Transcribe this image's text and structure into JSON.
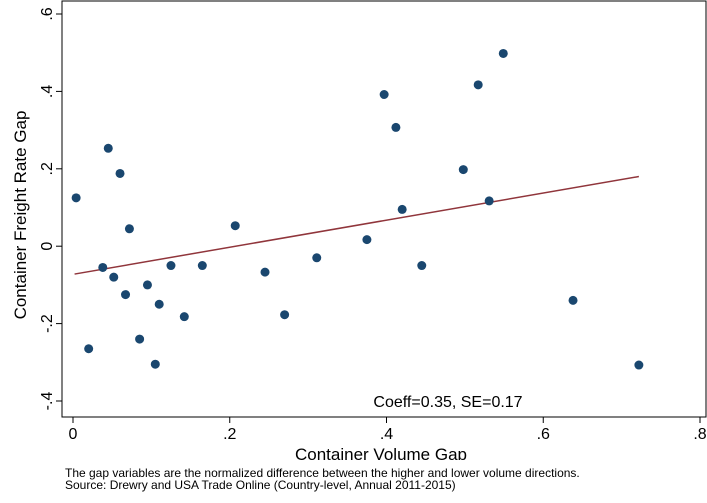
{
  "chart_data": {
    "type": "scatter",
    "xlabel": "Container Volume Gap",
    "ylabel": "Container Freight Rate Gap",
    "xlim": [
      0,
      0.8
    ],
    "ylim": [
      -0.4,
      0.6
    ],
    "x_ticks": [
      0,
      0.2,
      0.4,
      0.6,
      0.8
    ],
    "x_tick_labels": [
      "0",
      ".2",
      ".4",
      ".6",
      ".8"
    ],
    "y_ticks": [
      -0.4,
      -0.2,
      0,
      0.2,
      0.4,
      0.6
    ],
    "y_tick_labels": [
      "-.4",
      "-.2",
      "0",
      ".2",
      ".4",
      ".6"
    ],
    "grid": false,
    "point_color": "#1a476f",
    "line_color": "#90353b",
    "points": [
      [
        0.004,
        0.125
      ],
      [
        0.02,
        -0.265
      ],
      [
        0.038,
        -0.055
      ],
      [
        0.045,
        0.253
      ],
      [
        0.052,
        -0.08
      ],
      [
        0.06,
        0.188
      ],
      [
        0.067,
        -0.125
      ],
      [
        0.072,
        0.045
      ],
      [
        0.085,
        -0.24
      ],
      [
        0.095,
        -0.1
      ],
      [
        0.105,
        -0.305
      ],
      [
        0.11,
        -0.15
      ],
      [
        0.125,
        -0.05
      ],
      [
        0.142,
        -0.182
      ],
      [
        0.165,
        -0.05
      ],
      [
        0.207,
        0.053
      ],
      [
        0.245,
        -0.067
      ],
      [
        0.27,
        -0.177
      ],
      [
        0.311,
        -0.03
      ],
      [
        0.375,
        0.017
      ],
      [
        0.397,
        0.392
      ],
      [
        0.412,
        0.307
      ],
      [
        0.42,
        0.095
      ],
      [
        0.445,
        -0.05
      ],
      [
        0.498,
        0.198
      ],
      [
        0.517,
        0.417
      ],
      [
        0.531,
        0.117
      ],
      [
        0.549,
        0.498
      ],
      [
        0.638,
        -0.14
      ],
      [
        0.722,
        -0.307
      ]
    ],
    "fit_line": {
      "x": [
        0.002,
        0.722
      ],
      "y": [
        -0.072,
        0.18
      ]
    },
    "annotation": "Coeff=0.35, SE=0.17"
  },
  "notes": {
    "line1": "The gap variables are the normalized difference between the higher and lower volume directions.",
    "line2": "Source: Drewry and USA Trade Online (Country-level, Annual 2011-2015)"
  }
}
